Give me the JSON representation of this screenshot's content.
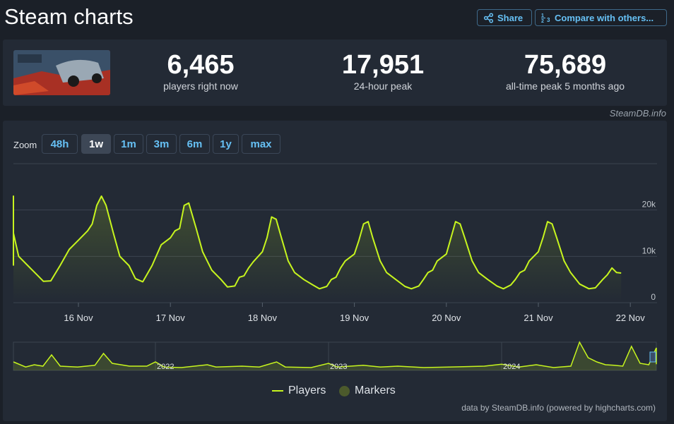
{
  "page": {
    "title": "Steam charts"
  },
  "header": {
    "share_label": "Share",
    "compare_label": "Compare with others..."
  },
  "stats": {
    "current": {
      "value": "6,465",
      "label": "players right now"
    },
    "peak24": {
      "value": "17,951",
      "label": "24-hour peak"
    },
    "alltime": {
      "value": "75,689",
      "label": "all-time peak 5 months ago"
    }
  },
  "credit": "SteamDB.info",
  "zoom": {
    "label": "Zoom",
    "options": [
      "48h",
      "1w",
      "1m",
      "3m",
      "6m",
      "1y",
      "max"
    ],
    "active": "1w"
  },
  "legend": {
    "players": "Players",
    "markers": "Markers"
  },
  "footer": "data by SteamDB.info (powered by highcharts.com)",
  "colors": {
    "line": "#c7f51e",
    "marker": "#4c5a2c",
    "accent": "#66c0f4"
  },
  "chart_data": [
    {
      "type": "line",
      "series": [
        {
          "name": "Players",
          "x_unit": "days (Nov 15 = 0)",
          "points": [
            [
              -0.2,
              8000
            ],
            [
              -0.1,
              11000
            ],
            [
              0,
              14500
            ],
            [
              0.05,
              17500
            ],
            [
              0.1,
              21000
            ],
            [
              0.15,
              23000
            ],
            [
              0.2,
              21000
            ],
            [
              0.28,
              15000
            ],
            [
              0.35,
              10000
            ],
            [
              0.45,
              8000
            ],
            [
              0.55,
              6000
            ],
            [
              0.62,
              4600
            ],
            [
              0.7,
              4700
            ],
            [
              0.8,
              8000
            ],
            [
              0.9,
              11500
            ],
            [
              1.0,
              13500
            ],
            [
              1.1,
              15500
            ],
            [
              1.15,
              17000
            ],
            [
              1.2,
              21000
            ],
            [
              1.25,
              23000
            ],
            [
              1.3,
              21000
            ],
            [
              1.38,
              15000
            ],
            [
              1.45,
              10000
            ],
            [
              1.55,
              8000
            ],
            [
              1.62,
              5200
            ],
            [
              1.7,
              4500
            ],
            [
              1.8,
              8000
            ],
            [
              1.9,
              12500
            ],
            [
              2.0,
              14000
            ],
            [
              2.05,
              15500
            ],
            [
              2.1,
              16000
            ],
            [
              2.15,
              21000
            ],
            [
              2.2,
              21500
            ],
            [
              2.28,
              16000
            ],
            [
              2.35,
              11000
            ],
            [
              2.45,
              7000
            ],
            [
              2.55,
              5000
            ],
            [
              2.62,
              3400
            ],
            [
              2.7,
              3600
            ],
            [
              2.75,
              5500
            ],
            [
              2.8,
              5800
            ],
            [
              2.85,
              7500
            ],
            [
              2.9,
              8800
            ],
            [
              3.0,
              11000
            ],
            [
              3.05,
              14000
            ],
            [
              3.1,
              18500
            ],
            [
              3.15,
              18000
            ],
            [
              3.2,
              14500
            ],
            [
              3.28,
              9000
            ],
            [
              3.35,
              6500
            ],
            [
              3.45,
              5000
            ],
            [
              3.55,
              3800
            ],
            [
              3.62,
              3000
            ],
            [
              3.7,
              3500
            ],
            [
              3.75,
              5000
            ],
            [
              3.8,
              5500
            ],
            [
              3.85,
              7500
            ],
            [
              3.9,
              9000
            ],
            [
              4.0,
              10500
            ],
            [
              4.05,
              13500
            ],
            [
              4.1,
              17000
            ],
            [
              4.15,
              17500
            ],
            [
              4.2,
              14000
            ],
            [
              4.28,
              9000
            ],
            [
              4.35,
              6500
            ],
            [
              4.45,
              5000
            ],
            [
              4.55,
              3500
            ],
            [
              4.62,
              3000
            ],
            [
              4.7,
              3600
            ],
            [
              4.75,
              5000
            ],
            [
              4.8,
              6500
            ],
            [
              4.85,
              7000
            ],
            [
              4.9,
              9000
            ],
            [
              5.0,
              10500
            ],
            [
              5.05,
              14000
            ],
            [
              5.1,
              17500
            ],
            [
              5.15,
              17000
            ],
            [
              5.2,
              14000
            ],
            [
              5.28,
              9000
            ],
            [
              5.35,
              6500
            ],
            [
              5.45,
              5000
            ],
            [
              5.55,
              3600
            ],
            [
              5.62,
              3000
            ],
            [
              5.7,
              3800
            ],
            [
              5.75,
              5000
            ],
            [
              5.8,
              6500
            ],
            [
              5.85,
              7000
            ],
            [
              5.9,
              9000
            ],
            [
              6.0,
              11000
            ],
            [
              6.05,
              14000
            ],
            [
              6.1,
              17500
            ],
            [
              6.15,
              17000
            ],
            [
              6.2,
              14000
            ],
            [
              6.28,
              9000
            ],
            [
              6.35,
              6500
            ],
            [
              6.45,
              4000
            ],
            [
              6.55,
              3000
            ],
            [
              6.62,
              3200
            ],
            [
              6.7,
              5000
            ],
            [
              6.75,
              6000
            ],
            [
              6.8,
              7500
            ],
            [
              6.85,
              6500
            ],
            [
              6.9,
              6400
            ]
          ]
        }
      ],
      "x_ticks": [
        "16 Nov",
        "17 Nov",
        "18 Nov",
        "19 Nov",
        "20 Nov",
        "21 Nov",
        "22 Nov"
      ],
      "y_ticks": [
        "0",
        "10k",
        "20k"
      ],
      "ylim": [
        0,
        30000
      ],
      "grid": true
    },
    {
      "type": "area",
      "role": "navigator",
      "x_ticks": [
        "2022",
        "2023",
        "2024"
      ],
      "series": [
        {
          "name": "Players",
          "x_unit": "years (2022 = 0)",
          "points": [
            [
              -0.82,
              0.3
            ],
            [
              -0.75,
              0.12
            ],
            [
              -0.7,
              0.2
            ],
            [
              -0.65,
              0.15
            ],
            [
              -0.6,
              0.55
            ],
            [
              -0.55,
              0.15
            ],
            [
              -0.45,
              0.12
            ],
            [
              -0.35,
              0.18
            ],
            [
              -0.3,
              0.6
            ],
            [
              -0.25,
              0.25
            ],
            [
              -0.15,
              0.15
            ],
            [
              -0.05,
              0.15
            ],
            [
              0,
              0.3
            ],
            [
              0.05,
              0.12
            ],
            [
              0.15,
              0.1
            ],
            [
              0.3,
              0.2
            ],
            [
              0.35,
              0.12
            ],
            [
              0.5,
              0.15
            ],
            [
              0.6,
              0.12
            ],
            [
              0.7,
              0.3
            ],
            [
              0.75,
              0.12
            ],
            [
              0.9,
              0.1
            ],
            [
              1.0,
              0.25
            ],
            [
              1.05,
              0.12
            ],
            [
              1.2,
              0.18
            ],
            [
              1.3,
              0.12
            ],
            [
              1.4,
              0.15
            ],
            [
              1.55,
              0.1
            ],
            [
              1.7,
              0.12
            ],
            [
              1.9,
              0.15
            ],
            [
              2.0,
              0.22
            ],
            [
              2.1,
              0.12
            ],
            [
              2.2,
              0.2
            ],
            [
              2.3,
              0.1
            ],
            [
              2.4,
              0.15
            ],
            [
              2.45,
              1.0
            ],
            [
              2.5,
              0.45
            ],
            [
              2.55,
              0.3
            ],
            [
              2.6,
              0.2
            ],
            [
              2.65,
              0.18
            ],
            [
              2.7,
              0.15
            ],
            [
              2.75,
              0.85
            ],
            [
              2.8,
              0.25
            ],
            [
              2.85,
              0.2
            ],
            [
              2.9,
              0.8
            ],
            [
              2.95,
              0.3
            ],
            [
              3.0,
              0.22
            ]
          ]
        }
      ]
    }
  ]
}
